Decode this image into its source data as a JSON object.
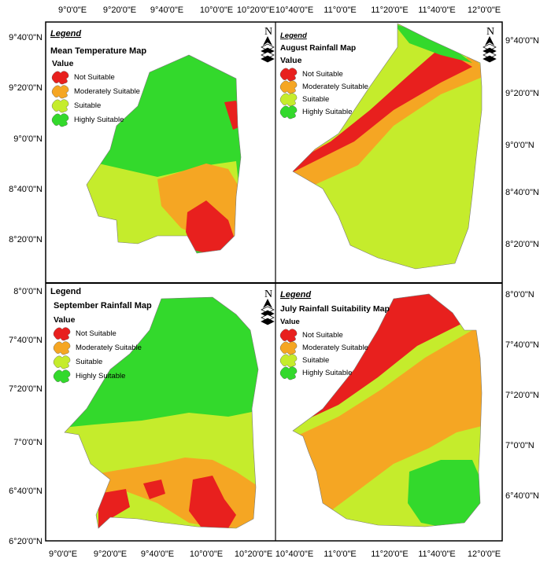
{
  "axes": {
    "top_left": [
      "9°0'0\"E",
      "9°20'0\"E",
      "9°40'0\"E",
      "10°0'0\"E",
      "10°20'0\"E"
    ],
    "top_right": [
      "10°40'0\"E",
      "11°0'0\"E",
      "11°20'0\"E",
      "11°40'0\"E",
      "12°0'0\"E"
    ],
    "bottom_left": [
      "9°0'0\"E",
      "9°20'0\"E",
      "9°40'0\"E",
      "10°0'0\"E",
      "10°20'0\"E"
    ],
    "bottom_right": [
      "10°40'0\"E",
      "11°0'0\"E",
      "11°20'0\"E",
      "11°40'0\"E",
      "12°0'0\"E"
    ],
    "left_top": [
      "9°40'0\"N",
      "9°20'0\"N",
      "9°0'0\"N",
      "8°40'0\"N",
      "8°20'0\"N"
    ],
    "left_bottom": [
      "8°0'0\"N",
      "7°40'0\"N",
      "7°20'0\"N",
      "7°0'0\"N",
      "6°40'0\"N",
      "6°20'0\"N"
    ],
    "right_top": [
      "9°40'0\"N",
      "9°20'0\"N",
      "9°0'0\"N",
      "8°40'0\"N",
      "8°20'0\"N"
    ],
    "right_bottom": [
      "8°0'0\"N",
      "7°40'0\"N",
      "7°20'0\"N",
      "7°0'0\"N",
      "6°40'0\"N"
    ]
  },
  "north_label": "N",
  "classes": [
    "Not Suitable",
    "Moderately Suitable",
    "Suitable",
    "Highly Suitable"
  ],
  "class_colors": {
    "not_suitable": "#e8201e",
    "moderately_suitable": "#f5a623",
    "suitable": "#c5ec2c",
    "highly_suitable": "#33d92c"
  },
  "panels": [
    {
      "legend": "Legend",
      "title": "Mean Temperature Map",
      "value": "Value"
    },
    {
      "legend": "Legend",
      "title": "August Rainfall Map",
      "value": "Value"
    },
    {
      "legend": "Legend",
      "title": "September Rainfall Map",
      "value": "Value"
    },
    {
      "legend": "Legend",
      "title": "July Rainfall Suitability Map",
      "value": "Value"
    }
  ]
}
